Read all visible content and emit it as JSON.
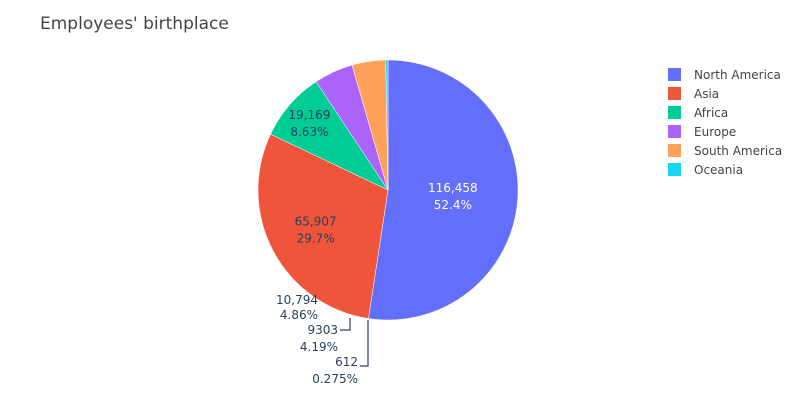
{
  "chart_data": {
    "type": "pie",
    "title": "Employees' birthplace",
    "categories": [
      "North America",
      "Asia",
      "Africa",
      "Europe",
      "South America",
      "Oceania"
    ],
    "values": [
      116458,
      65907,
      19169,
      10794,
      9303,
      612
    ],
    "value_labels": [
      "116,458",
      "65,907",
      "19,169",
      "10,794",
      "9303",
      "612"
    ],
    "percent_labels": [
      "52.4%",
      "29.7%",
      "8.63%",
      "4.86%",
      "4.19%",
      "0.275%"
    ],
    "colors": [
      "#636efa",
      "#ef553b",
      "#00cc96",
      "#ab63fa",
      "#ffa15a",
      "#19d3f3"
    ],
    "direction": "clockwise",
    "start": "12 o'clock",
    "legend_position": "right"
  }
}
